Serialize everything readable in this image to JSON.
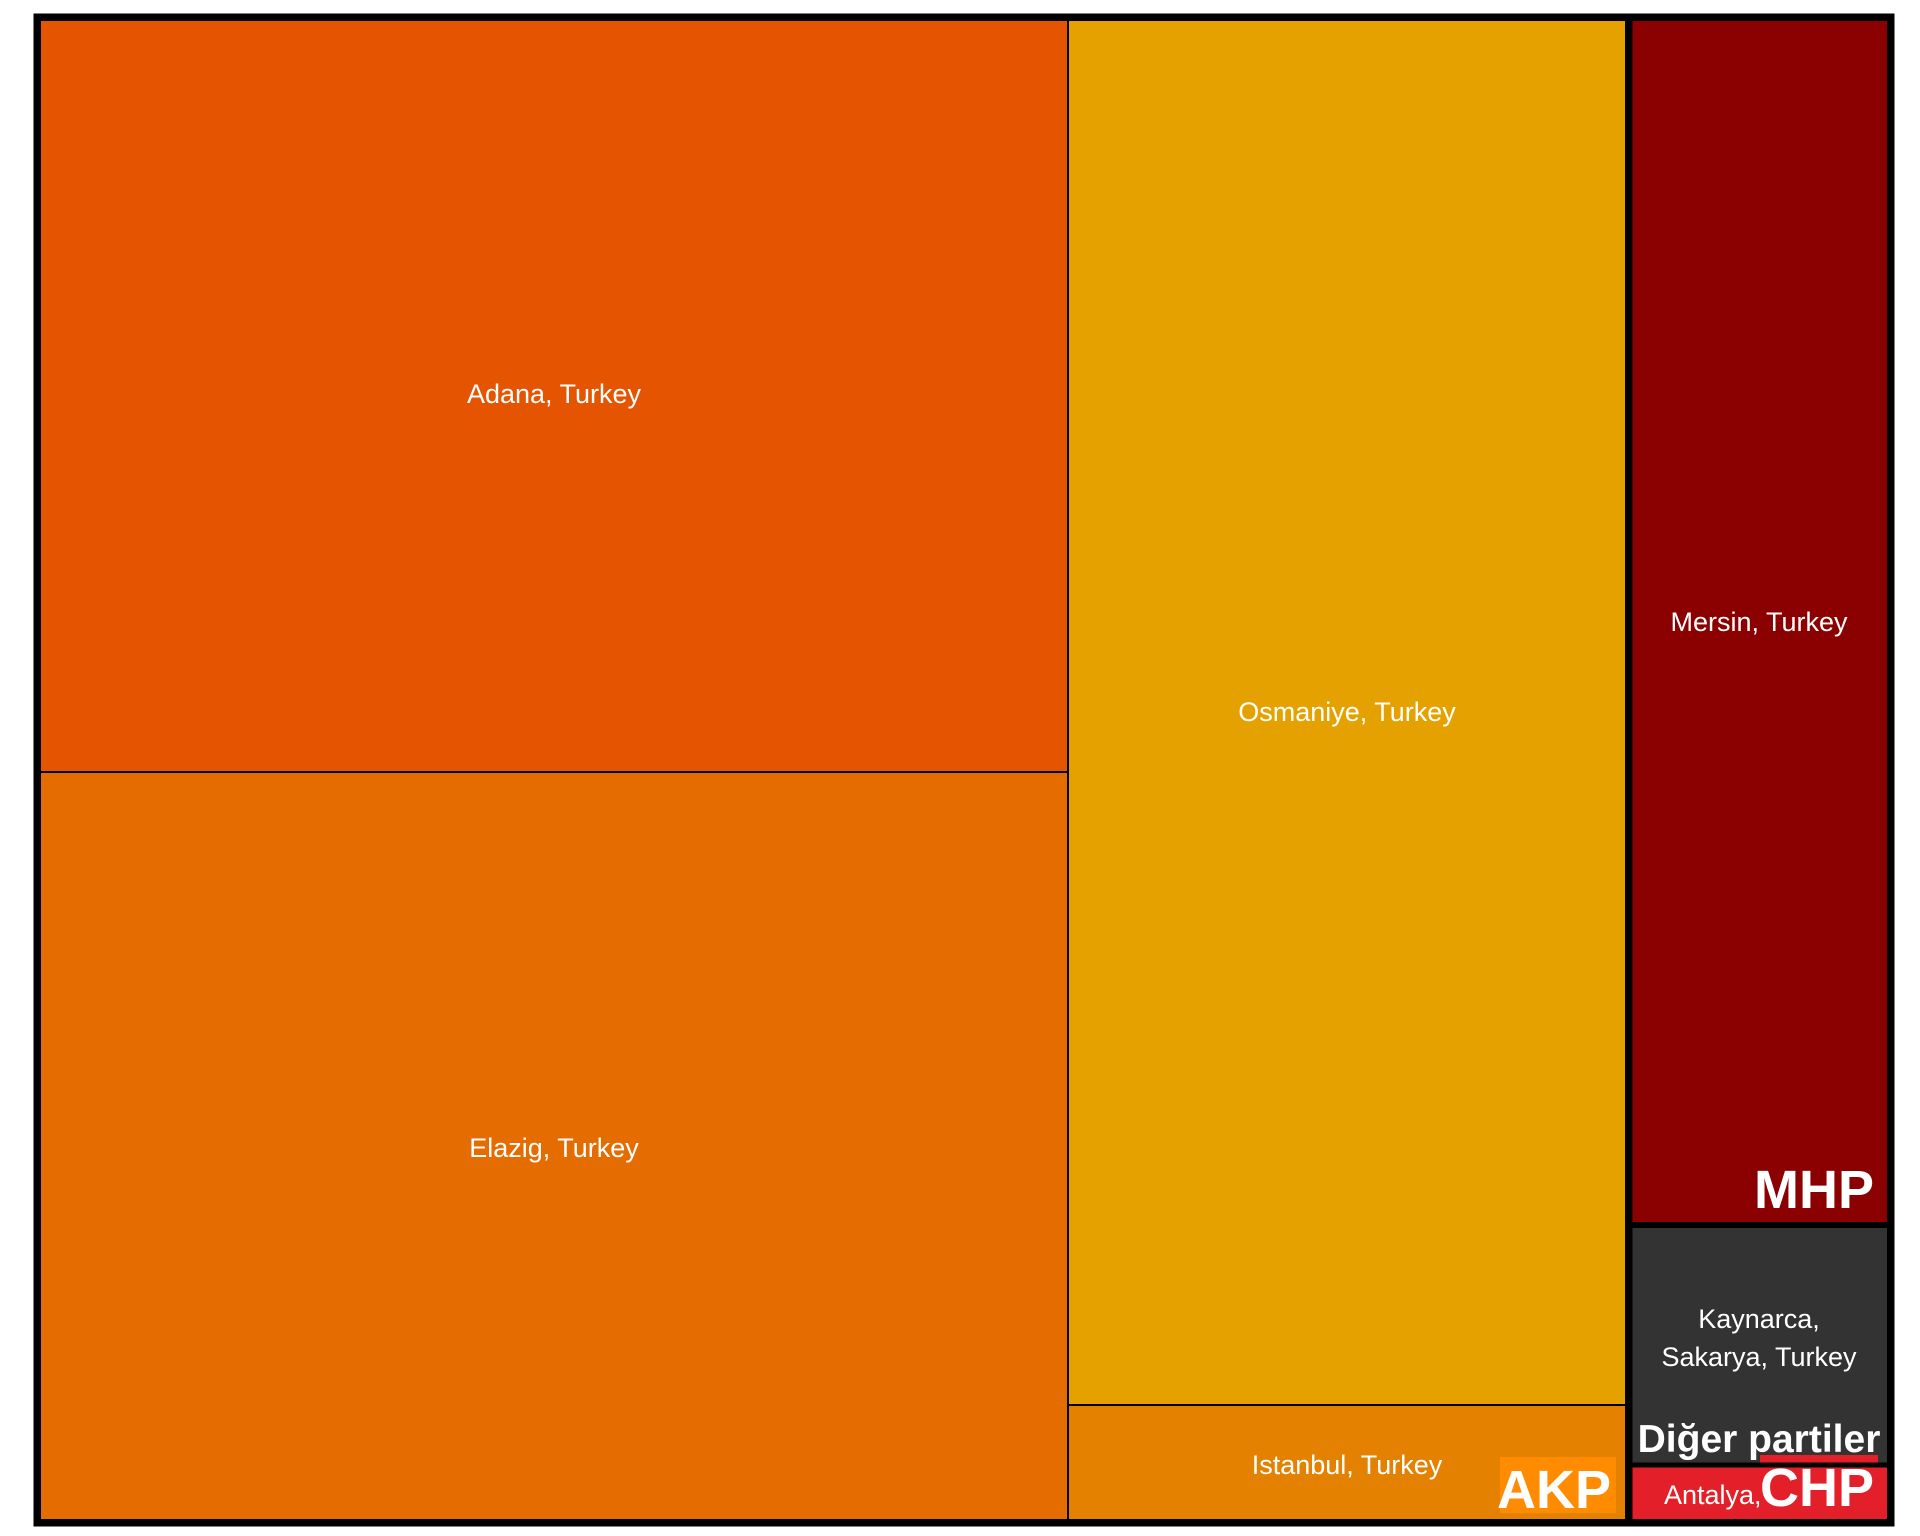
{
  "chart_data": {
    "type": "treemap",
    "title": "",
    "groups": [
      {
        "name": "AKP",
        "color": "#ff8c00",
        "items": [
          {
            "label": "Adana, Turkey",
            "value": 37.5,
            "color": "#e55400"
          },
          {
            "label": "Elazig, Turkey",
            "value": 37.5,
            "color": "#e56c00"
          },
          {
            "label": "Osmaniye, Turkey",
            "value": 37.0,
            "color": "#e5a100"
          },
          {
            "label": "Istanbul, Turkey",
            "value": 3.1,
            "color": "#e58100"
          }
        ]
      },
      {
        "name": "MHP",
        "color": "#8b0000",
        "items": [
          {
            "label": "Mersin, Turkey",
            "value": 15.4,
            "color": "#8b0000"
          }
        ]
      },
      {
        "name": "Diğer partiler",
        "color": "#333333",
        "items": [
          {
            "label": "Kaynarca,\nSakarya, Turkey",
            "value": 3.4,
            "color": "#333333"
          }
        ]
      },
      {
        "name": "CHP",
        "color": "#e3202a",
        "items": [
          {
            "label": "Antalya, Turkey",
            "value": 0.9,
            "color": "#e3202a"
          }
        ]
      }
    ]
  }
}
